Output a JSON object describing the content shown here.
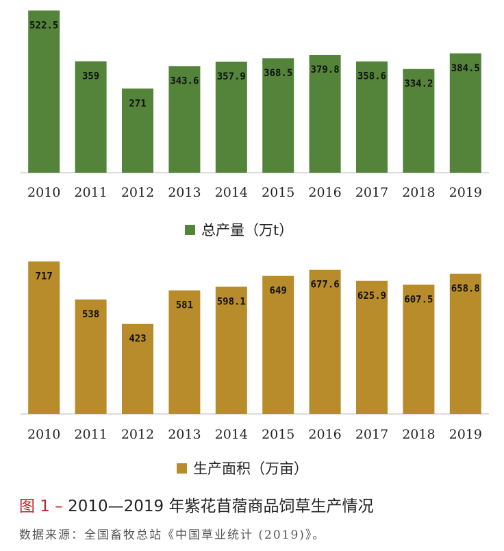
{
  "chart_data": [
    {
      "type": "bar",
      "categories": [
        "2010",
        "2011",
        "2012",
        "2013",
        "2014",
        "2015",
        "2016",
        "2017",
        "2018",
        "2019"
      ],
      "values": [
        522.5,
        359,
        271,
        343.6,
        357.9,
        368.5,
        379.8,
        358.6,
        334.2,
        384.5
      ],
      "value_labels": [
        "522.5",
        "359",
        "271",
        "343.6",
        "357.9",
        "368.5",
        "379.8",
        "358.6",
        "334.2",
        "384.5"
      ],
      "series": [
        {
          "name": "总产量（万t）",
          "values": [
            522.5,
            359,
            271,
            343.6,
            357.9,
            368.5,
            379.8,
            358.6,
            334.2,
            384.5
          ]
        }
      ],
      "ylim": [
        0,
        530
      ],
      "grid": false,
      "legend": "bottom",
      "color": "#53843a"
    },
    {
      "type": "bar",
      "categories": [
        "2010",
        "2011",
        "2012",
        "2013",
        "2014",
        "2015",
        "2016",
        "2017",
        "2018",
        "2019"
      ],
      "values": [
        717,
        538,
        423,
        581,
        598.1,
        649,
        677.6,
        625.9,
        607.5,
        658.8
      ],
      "value_labels": [
        "717",
        "538",
        "423",
        "581",
        "598.1",
        "649",
        "677.6",
        "625.9",
        "607.5",
        "658.8"
      ],
      "series": [
        {
          "name": "生产面积（万亩）",
          "values": [
            717,
            538,
            423,
            581,
            598.1,
            649,
            677.6,
            625.9,
            607.5,
            658.8
          ]
        }
      ],
      "ylim": [
        0,
        725
      ],
      "grid": false,
      "legend": "bottom",
      "color": "#b88c2a"
    }
  ],
  "caption": {
    "figure_label": "图 1 –",
    "text": " 2010—2019 年紫花苜蓿商品饲草生产情况"
  },
  "source": "数据来源：全国畜牧总站《中国草业统计 (2019)》。"
}
